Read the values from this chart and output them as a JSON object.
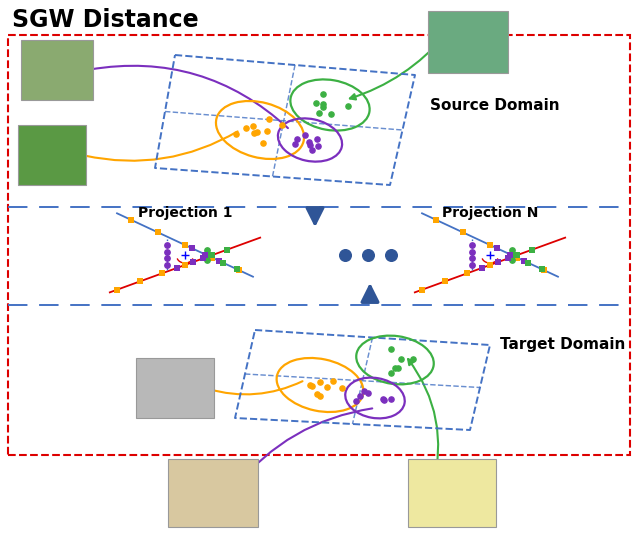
{
  "title": "SGW Distance",
  "source_label": "Source Domain",
  "target_label": "Target Domain",
  "proj1_label": "Projection 1",
  "projN_label": "Projection N",
  "bg_color": "#ffffff",
  "red_border_color": "#dd0000",
  "blue_color": "#4472c4",
  "arrow_color": "#2F5597",
  "orange_color": "#FFA500",
  "green_color": "#3cb043",
  "purple_color": "#7B2FBE",
  "red_line_color": "#dd0000",
  "ellipsis_dots_color": "#2F5597",
  "fig_w": 6.4,
  "fig_h": 5.38,
  "dpi": 100
}
